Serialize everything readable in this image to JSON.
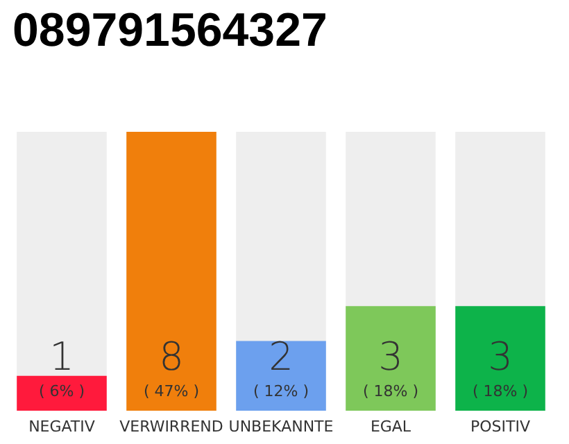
{
  "chart_data": {
    "type": "bar",
    "title": "089791564327",
    "categories": [
      "NEGATIV",
      "VERWIRREND",
      "UNBEKANNTE",
      "EGAL",
      "POSITIV"
    ],
    "values": [
      1,
      8,
      2,
      3,
      3
    ],
    "colors": [
      "#ff1a3c",
      "#f07f0c",
      "#6ca0ee",
      "#7ec85a",
      "#0db34a"
    ],
    "ylim": [
      0,
      8
    ],
    "tick_labels": "x",
    "data_labels": true,
    "annotations": [
      "( 6% )",
      "( 47% )",
      "( 12% )",
      "( 18% )",
      "( 18% )"
    ]
  }
}
